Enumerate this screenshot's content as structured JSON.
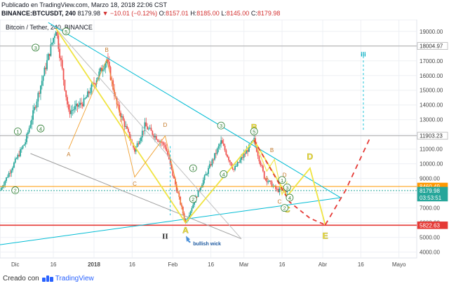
{
  "header": {
    "published": "Publicado en TradingView.com, Marzo 18, 2018 22:06 CST",
    "symbol": "BINANCE:BTCUSDT, 240",
    "last": "8179.98",
    "change": "−10.01 (−0.12%)",
    "o_label": "O:",
    "o": "8157.01",
    "h_label": "H:",
    "h": "8185.00",
    "l_label": "L:",
    "l": "8145.00",
    "c_label": "C:",
    "c": "8179.98"
  },
  "footer": {
    "prefix": "Creado con",
    "brand": "TradingView"
  },
  "colors": {
    "up": "#26a69a",
    "down": "#ef5350",
    "wave": "#f0e442",
    "trend": "#00bcd4",
    "level": "#e53935",
    "projection": "#e53935"
  },
  "chart_data": {
    "type": "candlestick",
    "title": "Bitcoin / Tether, 240, BINANCE",
    "x_tick_labels": [
      "Dic",
      "16",
      "2018",
      "16",
      "Feb",
      "16",
      "Mar",
      "16",
      "Abr",
      "16",
      "Mayo"
    ],
    "y_tick_labels": [
      "19000.00",
      "18000.00",
      "17000.00",
      "16000.00",
      "15000.00",
      "14000.00",
      "13000.00",
      "12000.00",
      "11000.00",
      "10000.00",
      "9000.00",
      "8000.00",
      "7000.00",
      "6000.00",
      "5000.00",
      "4000.00"
    ],
    "ylim": [
      3600,
      19800
    ],
    "x_dates": [
      "2017-11-25",
      "2017-12-05",
      "2017-12-10",
      "2017-12-17",
      "2017-12-22",
      "2017-12-28",
      "2018-01-06",
      "2018-01-10",
      "2018-01-17",
      "2018-01-21",
      "2018-01-29",
      "2018-02-06",
      "2018-02-12",
      "2018-02-20",
      "2018-02-25",
      "2018-03-05",
      "2018-03-09",
      "2018-03-14",
      "2018-03-18"
    ],
    "close_path": [
      8200,
      11500,
      14700,
      19200,
      13500,
      14200,
      17100,
      14000,
      10900,
      12600,
      11200,
      6000,
      8500,
      11500,
      9600,
      11600,
      9100,
      8200,
      8180
    ],
    "price_labels": [
      {
        "value": 18004.97,
        "text": "18004.97",
        "style": "level-gray"
      },
      {
        "value": 11903.23,
        "text": "11903.23",
        "style": "level-gray"
      },
      {
        "value": 8460.49,
        "text": "8460.49",
        "style": "level-orange"
      },
      {
        "value": 8179.98,
        "text": "8179.98",
        "style": "last-green"
      },
      {
        "value": 7700,
        "text": "03:53:51",
        "style": "timer-green"
      },
      {
        "value": 5822.63,
        "text": "5822.63",
        "style": "level-red"
      }
    ],
    "annotations": {
      "wave_labels_big": [
        "B",
        "A",
        "C",
        "D",
        "E"
      ],
      "wave_labels_small": [
        "B",
        "A",
        "C",
        "D",
        "A",
        "B",
        "C",
        "D"
      ],
      "circled_labels": [
        "1",
        "2",
        "3",
        "4",
        "5",
        "1",
        "2",
        "3",
        "4",
        "5",
        "1",
        "2",
        "3",
        "4"
      ],
      "roman_major": "II",
      "roman_minor": "iii",
      "wick_note": "bullish wick"
    }
  }
}
